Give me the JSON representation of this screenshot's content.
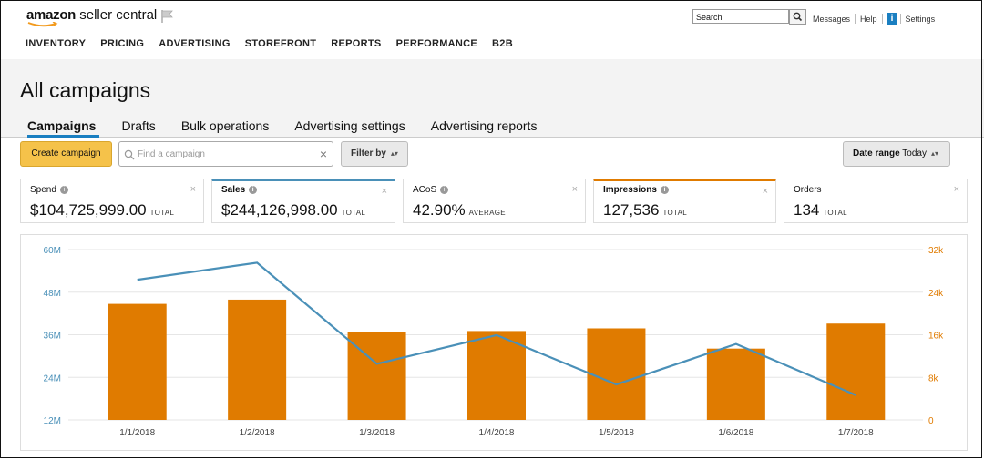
{
  "header": {
    "logo_brand": "amazon",
    "logo_sub": "seller central",
    "nav": [
      "INVENTORY",
      "PRICING",
      "ADVERTISING",
      "STOREFRONT",
      "REPORTS",
      "PERFORMANCE",
      "B2B"
    ],
    "search_value": "Search",
    "links": {
      "messages": "Messages",
      "help": "Help",
      "settings": "Settings"
    }
  },
  "page": {
    "title": "All campaigns",
    "tabs": [
      "Campaigns",
      "Drafts",
      "Bulk operations",
      "Advertising settings",
      "Advertising reports"
    ],
    "active_tab": "Campaigns"
  },
  "toolbar": {
    "create_label": "Create campaign",
    "search_placeholder": "Find a campaign",
    "filter_label": "Filter by",
    "date_label": "Date range",
    "date_value": "Today"
  },
  "metrics": [
    {
      "label": "Spend",
      "value": "$104,725,999.00",
      "unit": "TOTAL"
    },
    {
      "label": "Sales",
      "value": "$244,126,998.00",
      "unit": "TOTAL"
    },
    {
      "label": "ACoS",
      "value": "42.90%",
      "unit": "AVERAGE"
    },
    {
      "label": "Impressions",
      "value": "127,536",
      "unit": "TOTAL"
    },
    {
      "label": "Orders",
      "value": "134",
      "unit": "TOTAL"
    }
  ],
  "colors": {
    "accent_blue": "#4a90b8",
    "bar_orange": "#e07b00",
    "button_yellow": "#f5c24a"
  },
  "chart_data": {
    "type": "bar",
    "categories": [
      "1/1/2018",
      "1/2/2018",
      "1/3/2018",
      "1/4/2018",
      "1/5/2018",
      "1/6/2018",
      "1/7/2018"
    ],
    "left_axis": {
      "ticks": [
        "60M",
        "48M",
        "36M",
        "24M",
        "12M"
      ],
      "range": [
        12,
        60
      ]
    },
    "right_axis": {
      "ticks": [
        "32k",
        "24k",
        "16k",
        "8k",
        "0"
      ],
      "range": [
        0,
        32
      ]
    },
    "series": [
      {
        "type": "bar",
        "axis": "right",
        "values": [
          21800,
          22600,
          16500,
          16700,
          17200,
          13400,
          18100
        ]
      },
      {
        "type": "line",
        "axis": "left",
        "values": [
          51500,
          56300,
          27800,
          35900,
          22000,
          33400,
          19000
        ]
      }
    ],
    "grid": true
  }
}
